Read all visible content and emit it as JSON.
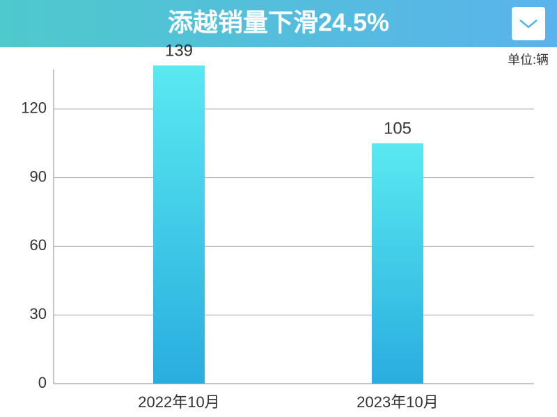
{
  "chart_data": {
    "type": "bar",
    "title": "添越销量下滑24.5%",
    "unit": "单位:辆",
    "categories": [
      "2022年10月",
      "2023年10月"
    ],
    "values": [
      139,
      105
    ],
    "ylim": [
      0,
      140
    ],
    "yticks": [
      0,
      30,
      60,
      90,
      120
    ],
    "grid": true,
    "color_top": "#5ae9f1",
    "color_bottom": "#29addf"
  }
}
